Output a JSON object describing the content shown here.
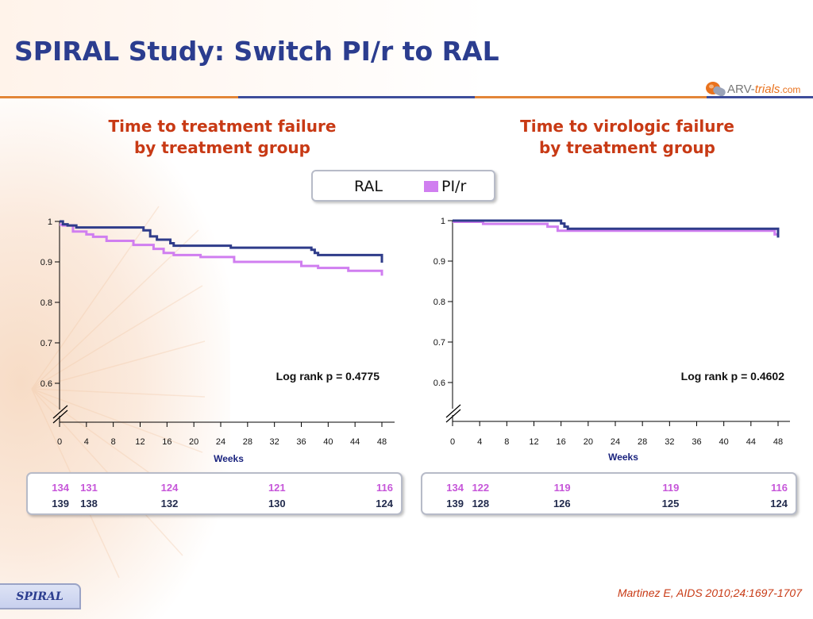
{
  "slide": {
    "title": "SPIRAL Study: Switch PI/r to RAL",
    "logo": {
      "prefix": "ARV-",
      "highlight": "trials",
      "suffix": ".com",
      "icon": "capsule-icon"
    },
    "footer_badge": "SPIRAL",
    "citation": "Martinez E, AIDS 2010;24:1697-1707"
  },
  "legend": [
    {
      "label": "RAL",
      "color": "#2f3c8a"
    },
    {
      "label": "PI/r",
      "color": "#d07ef0"
    }
  ],
  "panels": [
    {
      "title_lines": [
        "Time to treatment failure",
        "by treatment group"
      ],
      "annotation": "Log rank p = 0.4775",
      "at_risk": {
        "weeks": [
          0,
          4,
          16,
          32,
          48
        ],
        "PI/r": [
          "134",
          "131",
          "124",
          "121",
          "116"
        ],
        "RAL": [
          "139",
          "138",
          "132",
          "130",
          "124"
        ]
      }
    },
    {
      "title_lines": [
        "Time to virologic failure",
        "by treatment group"
      ],
      "annotation": "Log rank p = 0.4602",
      "at_risk": {
        "weeks": [
          0,
          4,
          16,
          32,
          48
        ],
        "PI/r": [
          "134",
          "122",
          "119",
          "119",
          "116"
        ],
        "RAL": [
          "139",
          "128",
          "126",
          "125",
          "124"
        ]
      }
    }
  ],
  "chart_data": [
    {
      "type": "line",
      "xlabel": "Weeks",
      "ylabel": "",
      "xlim": [
        0,
        48
      ],
      "ylim": [
        0.6,
        1
      ],
      "xticks": [
        0,
        4,
        8,
        12,
        16,
        20,
        24,
        28,
        32,
        36,
        40,
        44,
        48
      ],
      "yticks": [
        0.6,
        0.7,
        0.8,
        0.9,
        1
      ],
      "ytick_labels": [
        "0.6",
        "0.7",
        "0.8",
        "0.9",
        "1"
      ],
      "axis_break": true,
      "series": [
        {
          "name": "RAL",
          "color": "#2f3c8a",
          "steps": [
            [
              0,
              1.0
            ],
            [
              0.5,
              0.993
            ],
            [
              1.2,
              0.99
            ],
            [
              2.5,
              0.985
            ],
            [
              4.5,
              0.985
            ],
            [
              12,
              0.985
            ],
            [
              12.5,
              0.978
            ],
            [
              13.5,
              0.963
            ],
            [
              14.5,
              0.955
            ],
            [
              16.5,
              0.946
            ],
            [
              17,
              0.94
            ],
            [
              25.5,
              0.935
            ],
            [
              37.5,
              0.93
            ],
            [
              38,
              0.922
            ],
            [
              38.5,
              0.917
            ],
            [
              47.5,
              0.917
            ],
            [
              48,
              0.898
            ]
          ]
        },
        {
          "name": "PI/r",
          "color": "#d07ef0",
          "steps": [
            [
              0,
              0.992
            ],
            [
              0.5,
              0.99
            ],
            [
              2,
              0.975
            ],
            [
              4,
              0.968
            ],
            [
              5,
              0.962
            ],
            [
              7,
              0.952
            ],
            [
              11,
              0.942
            ],
            [
              14,
              0.932
            ],
            [
              15.5,
              0.922
            ],
            [
              17,
              0.917
            ],
            [
              21,
              0.912
            ],
            [
              26,
              0.9
            ],
            [
              36,
              0.89
            ],
            [
              38.5,
              0.885
            ],
            [
              43,
              0.878
            ],
            [
              47.5,
              0.878
            ],
            [
              48,
              0.866
            ]
          ]
        }
      ]
    },
    {
      "type": "line",
      "xlabel": "Weeks",
      "ylabel": "",
      "xlim": [
        0,
        48
      ],
      "ylim": [
        0.6,
        1
      ],
      "xticks": [
        0,
        4,
        8,
        12,
        16,
        20,
        24,
        28,
        32,
        36,
        40,
        44,
        48
      ],
      "yticks": [
        0.6,
        0.7,
        0.8,
        0.9,
        1
      ],
      "ytick_labels": [
        "0.6",
        "0.7",
        "0.8",
        "0.9",
        "1"
      ],
      "axis_break": true,
      "series": [
        {
          "name": "RAL",
          "color": "#2f3c8a",
          "steps": [
            [
              0,
              1.0
            ],
            [
              16,
              0.993
            ],
            [
              16.5,
              0.985
            ],
            [
              17,
              0.98
            ],
            [
              47.5,
              0.98
            ],
            [
              48,
              0.958
            ]
          ]
        },
        {
          "name": "PI/r",
          "color": "#d07ef0",
          "steps": [
            [
              0,
              0.997
            ],
            [
              4.5,
              0.992
            ],
            [
              14,
              0.985
            ],
            [
              15.5,
              0.975
            ],
            [
              47.5,
              0.966
            ],
            [
              48,
              0.966
            ]
          ]
        }
      ]
    }
  ]
}
